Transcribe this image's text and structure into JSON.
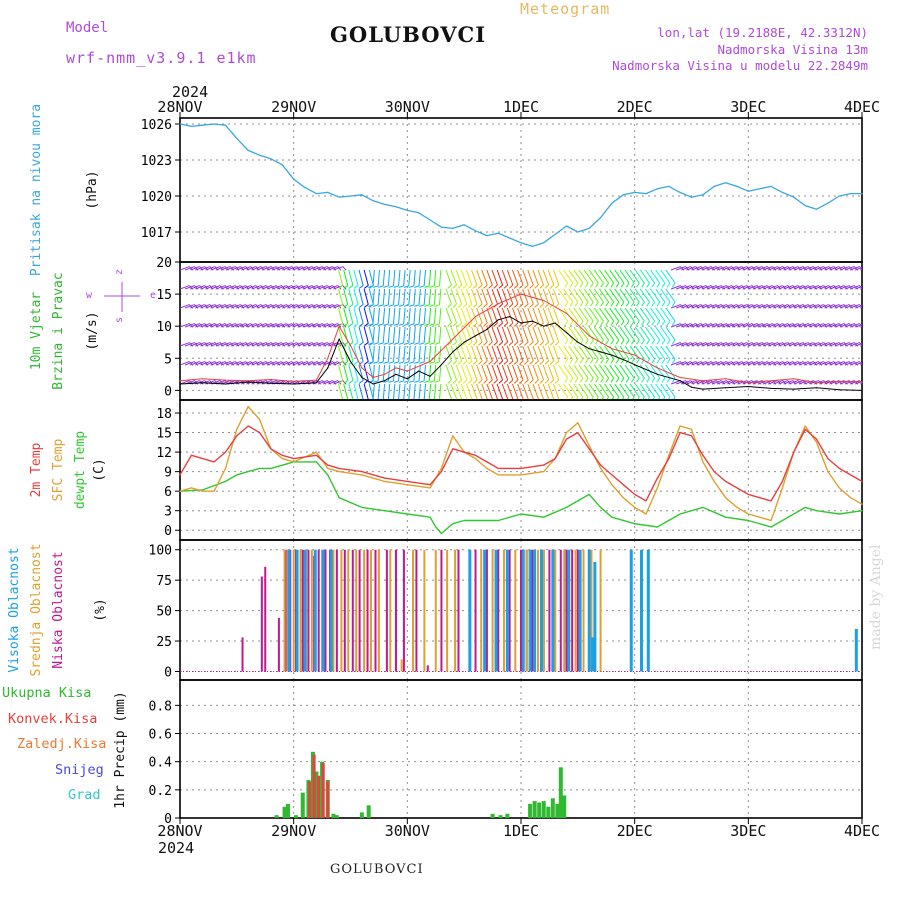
{
  "header": {
    "title": "GOLUBOVCI",
    "subtitle": "Meteogram",
    "model_label": "Model",
    "model_name": "wrf-nmm_v3.9.1 e1km",
    "lonlat": "lon,lat (19.2188E, 42.3312N)",
    "elevation": "Nadmorska Visina 13m",
    "model_elevation": "Nadmorska Visina u modelu 22.2849m",
    "bottom_title": "GOLUBOVCI",
    "signature": "made by Angel"
  },
  "colors": {
    "pressure": "#3aa8e0",
    "temp2m": "#e84040",
    "sfc_temp": "#e0a030",
    "dewpoint": "#30c830",
    "high_cloud": "#1aa0e8",
    "mid_cloud": "#e0a030",
    "low_cloud": "#c01890",
    "total_precip": "#30b830",
    "conv_precip": "#e84040",
    "frz_precip": "#f07830",
    "snow": "#4848e0",
    "hail": "#30c8c8",
    "purple": "#b04ad8"
  },
  "chart_data": [
    {
      "type": "line",
      "panel": "pressure",
      "ylabel": "Pritisak na nivou mora",
      "unit": "(hPa)",
      "yticks": [
        1017,
        1020,
        1023,
        1026
      ],
      "ylim": [
        1014.5,
        1026.5
      ],
      "x_tick_labels": [
        "28NOV",
        "29NOV",
        "30NOV",
        "1DEC",
        "2DEC",
        "3DEC",
        "4DEC"
      ],
      "x_year_label": "2024",
      "xlim": [
        0,
        6
      ],
      "series": [
        {
          "key": "pressure",
          "x": [
            0,
            0.1,
            0.2,
            0.3,
            0.4,
            0.5,
            0.6,
            0.7,
            0.8,
            0.9,
            1.0,
            1.1,
            1.2,
            1.3,
            1.4,
            1.5,
            1.6,
            1.7,
            1.8,
            1.9,
            2.0,
            2.1,
            2.2,
            2.3,
            2.4,
            2.5,
            2.6,
            2.7,
            2.8,
            2.9,
            3.0,
            3.1,
            3.2,
            3.3,
            3.4,
            3.5,
            3.6,
            3.7,
            3.8,
            3.9,
            4.0,
            4.1,
            4.2,
            4.3,
            4.4,
            4.5,
            4.6,
            4.7,
            4.8,
            4.9,
            5.0,
            5.1,
            5.2,
            5.3,
            5.4,
            5.5,
            5.6,
            5.7,
            5.8,
            5.9,
            6.0
          ],
          "values": [
            1026.0,
            1025.8,
            1025.9,
            1026.0,
            1025.9,
            1024.8,
            1023.8,
            1023.4,
            1023.1,
            1022.6,
            1021.4,
            1020.7,
            1020.2,
            1020.3,
            1019.9,
            1020.0,
            1020.1,
            1019.6,
            1019.3,
            1019.1,
            1018.8,
            1018.6,
            1018.0,
            1017.4,
            1017.3,
            1017.6,
            1017.1,
            1016.7,
            1016.9,
            1016.5,
            1016.1,
            1015.8,
            1016.1,
            1016.8,
            1017.5,
            1017.0,
            1017.3,
            1018.2,
            1019.4,
            1020.1,
            1020.3,
            1020.2,
            1020.6,
            1020.8,
            1020.3,
            1019.9,
            1020.1,
            1020.8,
            1021.1,
            1020.8,
            1020.4,
            1020.6,
            1020.8,
            1020.3,
            1019.9,
            1019.2,
            1018.9,
            1019.4,
            1020.0,
            1020.2,
            1020.2
          ]
        }
      ]
    },
    {
      "type": "line",
      "panel": "wind",
      "ylabel": "10m Vjetar Brzina i Pravac",
      "unit": "(m/s)",
      "compass_labels": [
        "z",
        "w",
        "e",
        "s",
        "<",
        ">"
      ],
      "yticks": [
        0,
        5,
        10,
        15,
        20
      ],
      "ylim": [
        -1.5,
        20
      ],
      "series": [
        {
          "key": "wind_speed",
          "color": "#000000",
          "x": [
            0,
            0.2,
            0.4,
            0.6,
            0.8,
            1.0,
            1.2,
            1.3,
            1.4,
            1.5,
            1.6,
            1.7,
            1.8,
            1.9,
            2.0,
            2.1,
            2.2,
            2.3,
            2.4,
            2.5,
            2.6,
            2.7,
            2.8,
            2.9,
            3.0,
            3.1,
            3.2,
            3.3,
            3.4,
            3.5,
            3.6,
            3.7,
            3.8,
            3.9,
            4.0,
            4.2,
            4.4,
            4.5,
            4.6,
            4.8,
            5.0,
            5.2,
            5.4,
            5.6,
            5.8,
            6.0
          ],
          "values": [
            1.0,
            1.2,
            1.0,
            1.3,
            1.1,
            1.0,
            1.2,
            3.5,
            8.0,
            4.5,
            2.0,
            1.0,
            1.5,
            2.5,
            1.8,
            3.0,
            2.2,
            4.0,
            6.0,
            7.5,
            8.5,
            9.5,
            11.0,
            11.5,
            10.5,
            10.8,
            10.0,
            10.5,
            9.0,
            7.5,
            6.5,
            6.0,
            5.5,
            4.8,
            4.0,
            2.5,
            1.5,
            0.5,
            0.2,
            0.4,
            0.6,
            0.3,
            0.2,
            0.4,
            0.1,
            0.0
          ]
        },
        {
          "key": "wind_gust",
          "color": "#e84040",
          "x": [
            0,
            0.2,
            0.4,
            0.6,
            0.8,
            1.0,
            1.2,
            1.3,
            1.4,
            1.5,
            1.6,
            1.7,
            1.8,
            1.9,
            2.0,
            2.2,
            2.4,
            2.6,
            2.8,
            3.0,
            3.2,
            3.4,
            3.6,
            3.8,
            4.0,
            4.2,
            4.4,
            4.6,
            4.8,
            5.0,
            5.2,
            5.4,
            5.6,
            5.8,
            6.0
          ],
          "values": [
            1.5,
            1.8,
            1.6,
            1.5,
            1.7,
            1.4,
            1.6,
            5.0,
            10.0,
            7.0,
            3.5,
            2.0,
            2.5,
            3.5,
            3.0,
            4.5,
            8.0,
            11.5,
            13.5,
            15.0,
            14.0,
            12.0,
            8.5,
            6.5,
            5.5,
            3.5,
            2.0,
            1.5,
            1.8,
            1.2,
            1.5,
            1.8,
            1.2,
            1.4,
            1.3
          ]
        }
      ]
    },
    {
      "type": "line",
      "panel": "temperature",
      "ylabel": "2m Temp SFC Temp dewpt Temp",
      "unit": "(C)",
      "yticks": [
        0,
        3,
        6,
        9,
        12,
        15,
        18
      ],
      "ylim": [
        -1.5,
        20
      ],
      "series": [
        {
          "name": "2m Temp",
          "key": "temp2m",
          "x": [
            0,
            0.1,
            0.2,
            0.3,
            0.4,
            0.5,
            0.6,
            0.7,
            0.8,
            0.9,
            1.0,
            1.2,
            1.3,
            1.4,
            1.6,
            1.8,
            2.0,
            2.2,
            2.3,
            2.4,
            2.5,
            2.6,
            2.7,
            2.8,
            2.9,
            3.0,
            3.2,
            3.3,
            3.4,
            3.5,
            3.6,
            3.7,
            3.8,
            3.9,
            4.0,
            4.1,
            4.2,
            4.3,
            4.4,
            4.5,
            4.6,
            4.7,
            4.8,
            4.9,
            5.0,
            5.1,
            5.2,
            5.3,
            5.4,
            5.5,
            5.6,
            5.7,
            5.8,
            5.9,
            6.0
          ],
          "values": [
            8.5,
            11.5,
            11.0,
            10.5,
            12.0,
            14.5,
            16.0,
            15.0,
            12.5,
            11.5,
            11.0,
            11.5,
            10.0,
            9.5,
            9.0,
            8.0,
            7.5,
            7.0,
            9.0,
            12.5,
            12.0,
            11.5,
            10.5,
            9.5,
            9.5,
            9.5,
            10.0,
            11.0,
            14.0,
            15.0,
            12.5,
            10.0,
            8.5,
            7.0,
            5.5,
            4.5,
            8.0,
            11.0,
            15.0,
            14.5,
            11.5,
            9.0,
            7.5,
            6.5,
            5.5,
            5.0,
            4.5,
            7.5,
            12.0,
            15.5,
            14.0,
            11.0,
            9.5,
            8.5,
            7.5
          ]
        },
        {
          "name": "SFC Temp",
          "key": "sfc_temp",
          "x": [
            0,
            0.1,
            0.2,
            0.3,
            0.4,
            0.5,
            0.6,
            0.7,
            0.8,
            0.9,
            1.0,
            1.2,
            1.3,
            1.4,
            1.6,
            1.8,
            2.0,
            2.2,
            2.3,
            2.4,
            2.5,
            2.6,
            2.7,
            2.8,
            2.9,
            3.0,
            3.2,
            3.3,
            3.4,
            3.5,
            3.6,
            3.7,
            3.8,
            3.9,
            4.0,
            4.1,
            4.2,
            4.3,
            4.4,
            4.5,
            4.6,
            4.7,
            4.8,
            4.9,
            5.0,
            5.1,
            5.2,
            5.3,
            5.4,
            5.5,
            5.6,
            5.7,
            5.8,
            5.9,
            6.0
          ],
          "values": [
            6.0,
            6.5,
            6.0,
            6.0,
            9.5,
            15.5,
            19.0,
            17.0,
            12.5,
            11.0,
            10.5,
            12.0,
            9.5,
            9.0,
            8.5,
            7.5,
            7.0,
            6.5,
            9.5,
            14.5,
            12.0,
            11.0,
            9.5,
            8.5,
            8.5,
            8.5,
            9.0,
            11.0,
            15.0,
            16.5,
            13.0,
            9.5,
            7.0,
            5.0,
            3.5,
            2.5,
            6.5,
            11.5,
            16.0,
            15.5,
            10.5,
            7.5,
            5.0,
            3.5,
            2.5,
            2.0,
            1.5,
            6.5,
            12.0,
            16.0,
            13.5,
            9.0,
            6.5,
            5.0,
            4.0
          ]
        },
        {
          "name": "dewpt Temp",
          "key": "dewpoint",
          "x": [
            0,
            0.2,
            0.4,
            0.5,
            0.6,
            0.7,
            0.8,
            1.0,
            1.1,
            1.2,
            1.3,
            1.4,
            1.6,
            1.8,
            2.0,
            2.2,
            2.25,
            2.3,
            2.4,
            2.5,
            2.6,
            2.8,
            3.0,
            3.2,
            3.4,
            3.5,
            3.6,
            3.7,
            3.8,
            4.0,
            4.2,
            4.4,
            4.5,
            4.6,
            4.8,
            5.0,
            5.2,
            5.4,
            5.5,
            5.6,
            5.8,
            6.0
          ],
          "values": [
            6.0,
            6.2,
            7.5,
            8.5,
            9.0,
            9.5,
            9.5,
            10.5,
            10.5,
            10.5,
            8.5,
            5.0,
            3.5,
            3.0,
            2.5,
            2.0,
            0.5,
            -0.5,
            1.0,
            1.5,
            1.5,
            1.5,
            2.5,
            2.0,
            3.5,
            4.5,
            5.5,
            3.5,
            2.0,
            1.0,
            0.5,
            2.5,
            3.0,
            3.5,
            2.0,
            1.5,
            0.5,
            2.5,
            3.5,
            3.0,
            2.5,
            3.0
          ]
        }
      ]
    },
    {
      "type": "bar",
      "panel": "clouds",
      "ylabel": "Visoka Oblacnost Srednja Oblacnost Niska Oblacnost",
      "unit": "(%)",
      "yticks": [
        0,
        25,
        50,
        75,
        100
      ],
      "ylim": [
        -7,
        108
      ],
      "series": [
        {
          "name": "Niska Oblacnost",
          "key": "low_cloud",
          "x": [
            0.55,
            0.72,
            0.75,
            0.87,
            0.93,
            0.97,
            1.02,
            1.08,
            1.13,
            1.18,
            1.22,
            1.28,
            1.32,
            1.38,
            1.45,
            1.52,
            1.58,
            1.65,
            1.72,
            1.82,
            1.9,
            1.97,
            2.08,
            2.18,
            2.3,
            2.45,
            2.6,
            2.7,
            2.8,
            2.9,
            3.0,
            3.05,
            3.1,
            3.2,
            3.25,
            3.3,
            3.35,
            3.4,
            3.45,
            3.5
          ],
          "values": [
            28,
            78,
            86,
            44,
            100,
            100,
            100,
            100,
            100,
            95,
            100,
            100,
            100,
            100,
            100,
            100,
            100,
            100,
            100,
            100,
            100,
            100,
            100,
            5,
            100,
            100,
            100,
            100,
            100,
            100,
            100,
            100,
            100,
            100,
            100,
            100,
            100,
            100,
            100,
            100
          ]
        },
        {
          "name": "Srednja Oblacnost",
          "key": "mid_cloud",
          "x": [
            0.92,
            0.95,
            1.0,
            1.06,
            1.11,
            1.16,
            1.25,
            1.35,
            1.42,
            1.48,
            1.55,
            1.62,
            1.68,
            1.75,
            1.85,
            1.95,
            2.05,
            2.15,
            2.25,
            2.35,
            2.42,
            2.55,
            2.65,
            2.75,
            2.85,
            2.95,
            3.05,
            3.15,
            3.2,
            3.3,
            3.38,
            3.48,
            3.55,
            3.62,
            3.7
          ],
          "values": [
            100,
            100,
            100,
            100,
            100,
            100,
            100,
            100,
            100,
            100,
            100,
            100,
            100,
            100,
            100,
            10,
            100,
            100,
            100,
            100,
            100,
            100,
            100,
            100,
            100,
            100,
            100,
            100,
            100,
            100,
            100,
            100,
            100,
            100,
            100
          ]
        },
        {
          "name": "Visoka Oblacnost",
          "key": "high_cloud",
          "x": [
            0.96,
            1.03,
            1.1,
            1.19,
            1.26,
            1.33,
            2.55,
            2.68,
            2.78,
            2.88,
            3.02,
            3.08,
            3.12,
            3.18,
            3.28,
            3.42,
            3.52,
            3.6,
            3.63,
            3.65,
            3.97,
            4.06,
            4.12,
            5.95
          ],
          "values": [
            100,
            100,
            100,
            100,
            100,
            100,
            100,
            100,
            100,
            100,
            100,
            100,
            100,
            100,
            100,
            100,
            100,
            100,
            28,
            90,
            100,
            100,
            100,
            35
          ]
        }
      ]
    },
    {
      "type": "bar",
      "panel": "precip",
      "ylabel": "1hr Precip (mm)",
      "legend": [
        "Ukupna Kisa",
        "Konvek.Kisa",
        "Zaledj.Kisa",
        "Snijeg",
        "Grad"
      ],
      "yticks": [
        0,
        0.2,
        0.4,
        0.6,
        0.8
      ],
      "ylim": [
        0,
        0.98
      ],
      "x_tick_labels": [
        "28NOV",
        "29NOV",
        "30NOV",
        "1DEC",
        "2DEC",
        "3DEC",
        "4DEC"
      ],
      "x_year_label": "2024",
      "series": [
        {
          "name": "Ukupna Kisa",
          "key": "total_precip",
          "x": [
            0.85,
            0.92,
            0.95,
            1.02,
            1.08,
            1.13,
            1.17,
            1.2,
            1.25,
            1.3,
            1.35,
            1.38,
            1.6,
            1.66,
            2.75,
            2.82,
            2.88,
            3.08,
            3.12,
            3.16,
            3.2,
            3.24,
            3.28,
            3.32,
            3.35,
            3.38
          ],
          "values": [
            0.02,
            0.08,
            0.1,
            0.02,
            0.18,
            0.27,
            0.47,
            0.33,
            0.4,
            0.27,
            0.03,
            0.02,
            0.04,
            0.09,
            0.03,
            0.02,
            0.03,
            0.1,
            0.12,
            0.11,
            0.12,
            0.08,
            0.14,
            0.1,
            0.36,
            0.16
          ]
        },
        {
          "name": "Konvek.Kisa",
          "key": "conv_precip",
          "x": [
            1.14,
            1.18,
            1.22,
            1.26,
            1.3
          ],
          "values": [
            0.26,
            0.45,
            0.3,
            0.39,
            0.26
          ]
        }
      ]
    }
  ]
}
